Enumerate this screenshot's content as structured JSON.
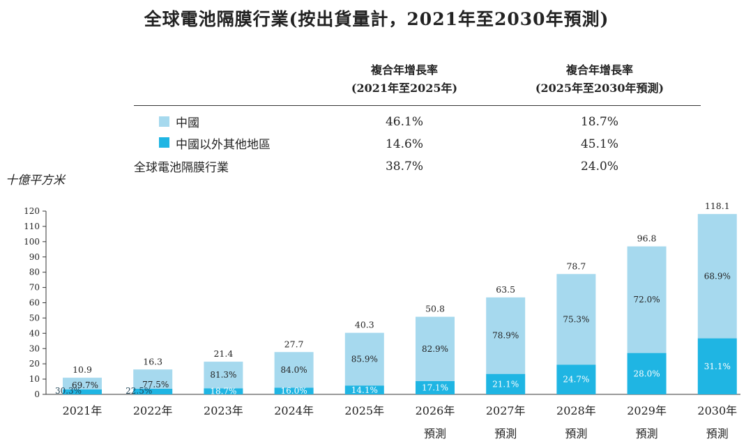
{
  "title": "全球電池隔膜行業(按出貨量計，2021年至2030年預測)",
  "table": {
    "headers": [
      {
        "line1": "複合年增長率",
        "line2": "(2021年至2025年)"
      },
      {
        "line1": "複合年增長率",
        "line2": "(2025年至2030年預測)"
      }
    ],
    "rows": [
      {
        "label": "中國",
        "swatch": "china",
        "v1": "46.1%",
        "v2": "18.7%"
      },
      {
        "label": "中國以外其他地區",
        "swatch": "other",
        "v1": "14.6%",
        "v2": "45.1%"
      },
      {
        "label": "全球電池隔膜行業",
        "swatch": "",
        "v1": "38.7%",
        "v2": "24.0%"
      }
    ]
  },
  "colors": {
    "china": "#a6d9ee",
    "other": "#1fb5e3"
  },
  "chart_data": {
    "type": "bar",
    "stacked": true,
    "ylabel": "十億平方米",
    "ylim": [
      0,
      120
    ],
    "yticks": [
      0,
      10,
      20,
      30,
      40,
      50,
      60,
      70,
      80,
      90,
      100,
      110,
      120
    ],
    "categories": [
      "2021年",
      "2022年",
      "2023年",
      "2024年",
      "2025年",
      "2026年\n預測",
      "2027年\n預測",
      "2028年\n預測",
      "2029年\n預測",
      "2030年\n預測"
    ],
    "totals": [
      10.9,
      16.3,
      21.4,
      27.7,
      40.3,
      50.8,
      63.5,
      78.7,
      96.8,
      118.1
    ],
    "series": [
      {
        "name": "中國以外其他地區",
        "share_labels": [
          "30.3%",
          "22.5%",
          "18.7%",
          "16.0%",
          "14.1%",
          "17.1%",
          "21.1%",
          "24.7%",
          "28.0%",
          "31.1%"
        ],
        "values": [
          3.3,
          3.7,
          4.0,
          4.4,
          5.7,
          8.7,
          13.4,
          19.4,
          27.1,
          36.7
        ]
      },
      {
        "name": "中國",
        "share_labels": [
          "69.7%",
          "77.5%",
          "81.3%",
          "84.0%",
          "85.9%",
          "82.9%",
          "78.9%",
          "75.3%",
          "72.0%",
          "68.9%"
        ],
        "values": [
          7.6,
          12.6,
          17.4,
          23.3,
          34.6,
          42.1,
          50.1,
          59.4,
          69.8,
          81.4
        ]
      }
    ]
  }
}
